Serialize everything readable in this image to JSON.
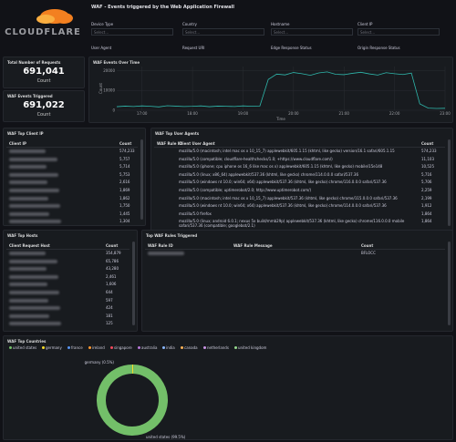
{
  "header": {
    "brand": "CLOUDFLARE",
    "title": "WAF - Events triggered by the Web Application Firewall"
  },
  "filters": [
    {
      "label": "Device Type",
      "placeholder": "Select..."
    },
    {
      "label": "Country",
      "placeholder": "Select..."
    },
    {
      "label": "Hostname",
      "placeholder": "Select..."
    },
    {
      "label": "Client IP",
      "placeholder": "Select..."
    },
    {
      "label": "User Agent"
    },
    {
      "label": "Request URI"
    },
    {
      "label": "Edge Response Status"
    },
    {
      "label": "Origin Response Status"
    }
  ],
  "stats": [
    {
      "title": "Total Number of Requests",
      "value": "691,041",
      "unit": "Count"
    },
    {
      "title": "WAF Events Triggered",
      "value": "691,022",
      "unit": "Count"
    }
  ],
  "events_over_time": {
    "title": "WAF Events Over Time",
    "y_label": "Count",
    "x_label": "Time",
    "color": "#2fb8ac",
    "ylim": [
      0,
      22000
    ],
    "yticks": [
      0,
      10000,
      20000
    ],
    "categories": [
      null,
      null,
      null,
      "17:00",
      null,
      null,
      null,
      null,
      null,
      "18:00",
      null,
      null,
      null,
      null,
      null,
      "19:00",
      null,
      null,
      null,
      null,
      null,
      "20:00",
      null,
      null,
      null,
      null,
      null,
      "21:00",
      null,
      null,
      null,
      null,
      null,
      "22:00",
      null,
      null,
      null,
      null,
      null,
      "23:00"
    ],
    "values": [
      1800,
      2100,
      1900,
      2200,
      2000,
      1700,
      2300,
      2100,
      1900,
      2000,
      2200,
      1800,
      2100,
      2000,
      1900,
      2200,
      2000,
      2100,
      15500,
      18200,
      17800,
      19000,
      18400,
      17600,
      18800,
      19300,
      18100,
      17900,
      18600,
      19100,
      18300,
      17700,
      18900,
      18400,
      18000,
      18700,
      3200,
      1100,
      900,
      1000
    ]
  },
  "client_ip": {
    "title": "WAF Top Client IP",
    "columns": [
      "Client IP",
      "Count"
    ],
    "rows": [
      [
        "574,233"
      ],
      [
        "5,757"
      ],
      [
        "5,714"
      ],
      [
        "5,753"
      ],
      [
        "2,616"
      ],
      [
        "1,869"
      ],
      [
        "1,862"
      ],
      [
        "1,750"
      ],
      [
        "1,445"
      ],
      [
        "1,304"
      ]
    ]
  },
  "user_agents": {
    "title": "WAF Top User Agents",
    "columns": [
      "WAF Rule ID",
      "Client User Agent",
      "Count"
    ],
    "rows": [
      [
        "mozilla/5.0 (macintosh; intel mac os x 10_15_7) applewebkit/605.1.15 (khtml, like gecko) version/16.1 safari/605.1.15",
        "574,233"
      ],
      [
        "mozilla/5.0 (compatible; cloudflare-healthchecks/1.0; +https://www.cloudflare.com/)",
        "11,103"
      ],
      [
        "mozilla/5.0 (iphone; cpu iphone os 16_6 like mac os x) applewebkit/605.1.15 (khtml, like gecko) mobile/15e148",
        "10,525"
      ],
      [
        "mozilla/5.0 (linux; x86_64) applewebkit/537.36 (khtml, like gecko) chrome/114.0.0.0 safari/537.36",
        "5,716"
      ],
      [
        "mozilla/5.0 (windows nt 10.0; win64; x64) applewebkit/537.36 (khtml, like gecko) chrome/116.0.0.0 safari/537.36",
        "5,706"
      ],
      [
        "mozilla/5.0 (compatible; uptimerobot/2.0; http://www.uptimerobot.com/)",
        "2,259"
      ],
      [
        "mozilla/5.0 (macintosh; intel mac os x 10_15_7) applewebkit/537.36 (khtml, like gecko) chrome/115.0.0.0 safari/537.36",
        "2,199"
      ],
      [
        "mozilla/5.0 (windows nt 10.0; win64; x64) applewebkit/537.36 (khtml, like gecko) chrome/114.0.0.0 safari/537.36",
        "1,912"
      ],
      [
        "mozilla/5.0 firefox",
        "1,864"
      ],
      [
        "mozilla/5.0 (linux; android 6.0.1; nexus 5x build/mmb29p) applewebkit/537.36 (khtml, like gecko) chrome/116.0.0.0 mobile safari/537.36 (compatible; googlebot/2.1)",
        "1,864"
      ]
    ]
  },
  "hosts": {
    "title": "WAF Top Hosts",
    "columns": [
      "Client Request Host",
      "Count"
    ],
    "rows": [
      [
        "354,879"
      ],
      [
        "65,786"
      ],
      [
        "43,280"
      ],
      [
        "2,461"
      ],
      [
        "1,606"
      ],
      [
        "644"
      ],
      [
        "597"
      ],
      [
        "424"
      ],
      [
        "181"
      ],
      [
        "125"
      ]
    ]
  },
  "rules": {
    "title": "Top WAF Rules Triggered",
    "columns": [
      "WAF Rule ID",
      "WAF Rule Message",
      "Count"
    ],
    "rows": [
      [
        "BFLOCC"
      ]
    ]
  },
  "countries": {
    "title": "WAF Top Countries",
    "legend": [
      {
        "name": "united states",
        "color": "#73bf69"
      },
      {
        "name": "germany",
        "color": "#fade2a"
      },
      {
        "name": "france",
        "color": "#5794f2"
      },
      {
        "name": "ireland",
        "color": "#ff9830"
      },
      {
        "name": "singapore",
        "color": "#f2495c"
      },
      {
        "name": "australia",
        "color": "#b877d9"
      },
      {
        "name": "india",
        "color": "#8ab8ff"
      },
      {
        "name": "canada",
        "color": "#ffb357"
      },
      {
        "name": "netherlands",
        "color": "#ca95e5"
      },
      {
        "name": "united kingdom",
        "color": "#96d98d"
      }
    ],
    "slices": [
      {
        "label": "germany (0.5%)",
        "value": 0.5,
        "color": "#fade2a"
      },
      {
        "label": "united states (99.5%)",
        "value": 99.5,
        "color": "#73bf69"
      }
    ]
  }
}
